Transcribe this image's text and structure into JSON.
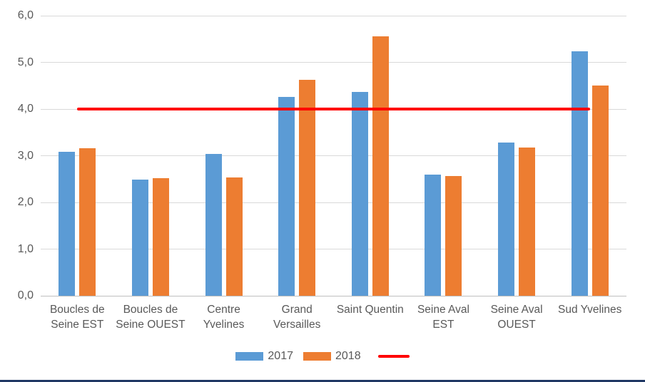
{
  "chart": {
    "background_color": "#FFFFFF",
    "frame_bottom_border_color": "#203864",
    "grid_color": "#D9D9D9",
    "axis_line_color": "#BFBFBF",
    "text_color": "#595959"
  },
  "chart_data": {
    "type": "bar",
    "title": "",
    "xlabel": "",
    "ylabel": "",
    "categories": [
      "Boucles de Seine EST",
      "Boucles de Seine OUEST",
      "Centre Yvelines",
      "Grand Versailles",
      "Saint Quentin",
      "Seine Aval EST",
      "Seine Aval OUEST",
      "Sud Yvelines"
    ],
    "series": [
      {
        "name": "2017",
        "color": "#5B9BD5",
        "values": [
          3.09,
          2.49,
          3.04,
          4.26,
          4.36,
          2.59,
          3.28,
          5.23
        ]
      },
      {
        "name": "2018",
        "color": "#ED7D31",
        "values": [
          3.16,
          2.52,
          2.53,
          4.62,
          5.55,
          2.57,
          3.17,
          4.5
        ]
      }
    ],
    "reference_line": {
      "value": 4.0,
      "color": "#FF0000",
      "span_categories": [
        0,
        7
      ]
    },
    "ylim": [
      0,
      6
    ],
    "ytick_step": 1,
    "ytick_labels": [
      "0,0",
      "1,0",
      "2,0",
      "3,0",
      "4,0",
      "5,0",
      "6,0"
    ],
    "grid": true,
    "legend_position": "bottom"
  }
}
